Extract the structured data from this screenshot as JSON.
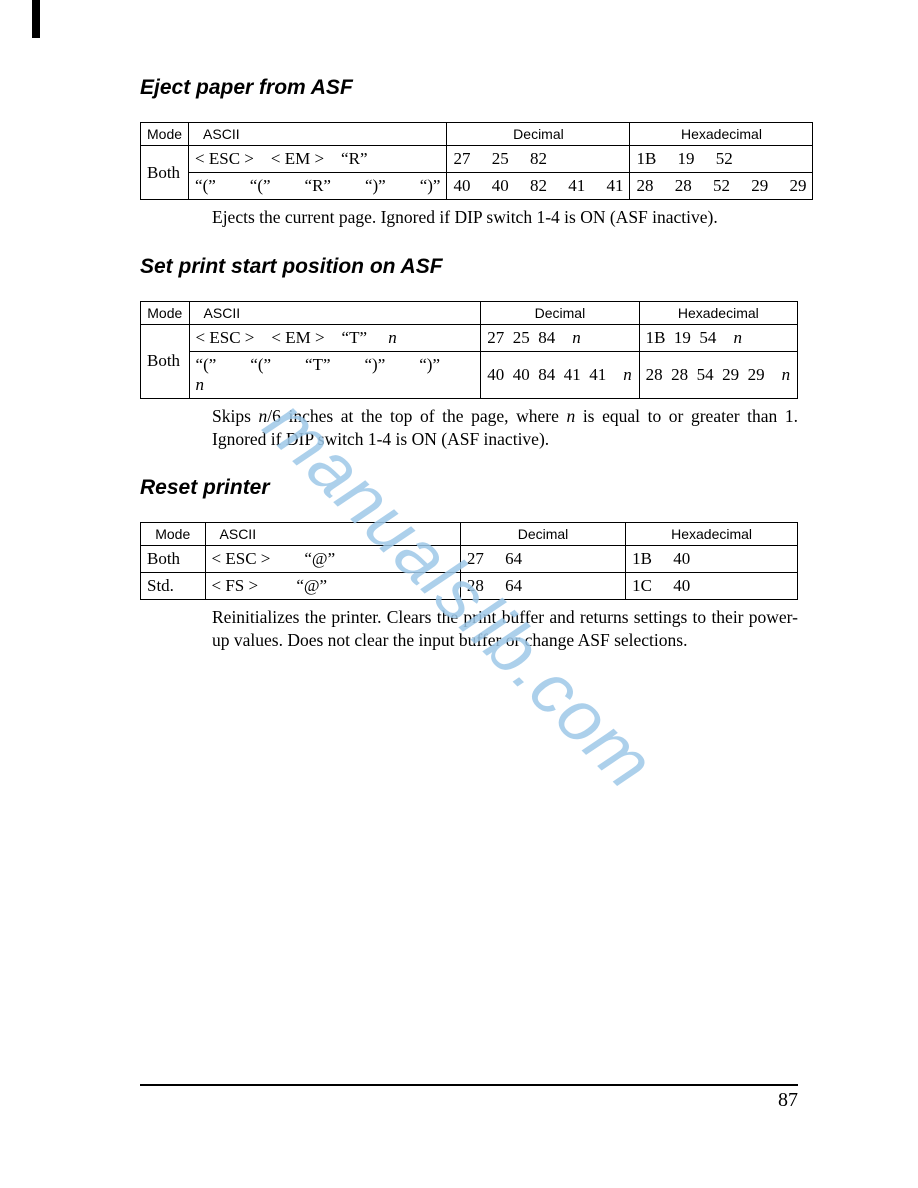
{
  "watermark_text": "manualslib.com",
  "watermark_color": "#9ec8e8",
  "page_number": "87",
  "sections": [
    {
      "title": "Eject paper from ASF",
      "headers": [
        "Mode",
        "ASCII",
        "Decimal",
        "Hexadecimal"
      ],
      "mode": "Both",
      "rows": [
        {
          "ascii": "< ESC > < EM > “R”",
          "dec": "27  25  82",
          "hex": "1B  19  52"
        },
        {
          "ascii": "“(”  “(”  “R”  “)”  “)”",
          "dec": "40  40  82  41  41",
          "hex": "28  28  52  29  29"
        }
      ],
      "desc_html": "Ejects the current page. Ignored if DIP switch 1-4 is ON (ASF inactive)."
    },
    {
      "title": "Set print start position on ASF",
      "headers": [
        "Mode",
        "ASCII",
        "Decimal",
        "Hexadecimal"
      ],
      "mode": "Both",
      "rows": [
        {
          "ascii": "< ESC > < EM > “T”  <i>n</i>",
          "dec": "27 25 84 <i>n</i>",
          "hex": "1B 19 54 <i>n</i>"
        },
        {
          "ascii": "“(”  “(”  “T”  “)”  “)”  <i>n</i>",
          "dec": "40 40 84 41 41 <i>n</i>",
          "hex": "28 28 54 29 29 <i>n</i>"
        }
      ],
      "desc_html": "Skips <i>n</i>/6 inches at the top of the page, where <i>n</i> is equal to or greater than 1. Ignored if DIP switch 1-4 is ON (ASF inactive)."
    },
    {
      "title": "Reset printer",
      "headers": [
        "Mode",
        "ASCII",
        "Decimal",
        "Hexadecimal"
      ],
      "rows_simple": [
        {
          "mode": "Both",
          "ascii": "< ESC >  “@”",
          "dec": "27  64",
          "hex": "1B  40"
        },
        {
          "mode": "Std.",
          "ascii": "< FS >   “@”",
          "dec": "28  64",
          "hex": "1C  40"
        }
      ],
      "desc_html": "Reinitializes the printer. Clears the print buffer and returns settings to their power-up values. Does not clear the input buffer or change ASF selections."
    }
  ]
}
